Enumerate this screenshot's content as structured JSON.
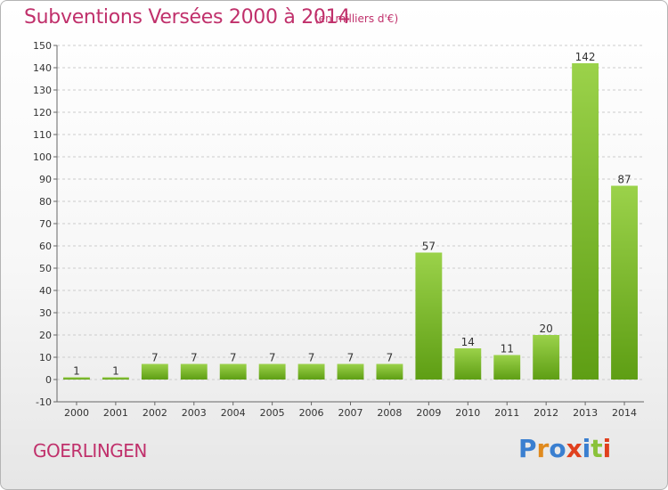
{
  "header": {
    "title": "Subventions Versées 2000 à 2014",
    "subtitle": "(en milliers d'€)"
  },
  "footer": {
    "place": "GOERLINGEN",
    "logo": "Proxiti"
  },
  "colors": {
    "title": "#c0306b",
    "bar_light": "#9bd24a",
    "bar_dark": "#5e9e14",
    "grid": "#cccccc",
    "logo": [
      "#3a7fd0",
      "#e08a1e",
      "#3a7fd0",
      "#e0401e",
      "#3a7fd0",
      "#8ac23a",
      "#e0401e"
    ]
  },
  "chart_data": {
    "type": "bar",
    "title": "Subventions Versées 2000 à 2014",
    "subtitle": "(en milliers d'€)",
    "xlabel": "",
    "ylabel": "",
    "categories": [
      "2000",
      "2001",
      "2002",
      "2003",
      "2004",
      "2005",
      "2006",
      "2007",
      "2008",
      "2009",
      "2010",
      "2011",
      "2012",
      "2013",
      "2014"
    ],
    "values": [
      1,
      1,
      7,
      7,
      7,
      7,
      7,
      7,
      7,
      57,
      14,
      11,
      20,
      142,
      87
    ],
    "ylim": [
      -10,
      150
    ],
    "yticks": [
      -10,
      0,
      10,
      20,
      30,
      40,
      50,
      60,
      70,
      80,
      90,
      100,
      110,
      120,
      130,
      140,
      150
    ],
    "grid": "horizontal dashed",
    "legend": "none"
  }
}
